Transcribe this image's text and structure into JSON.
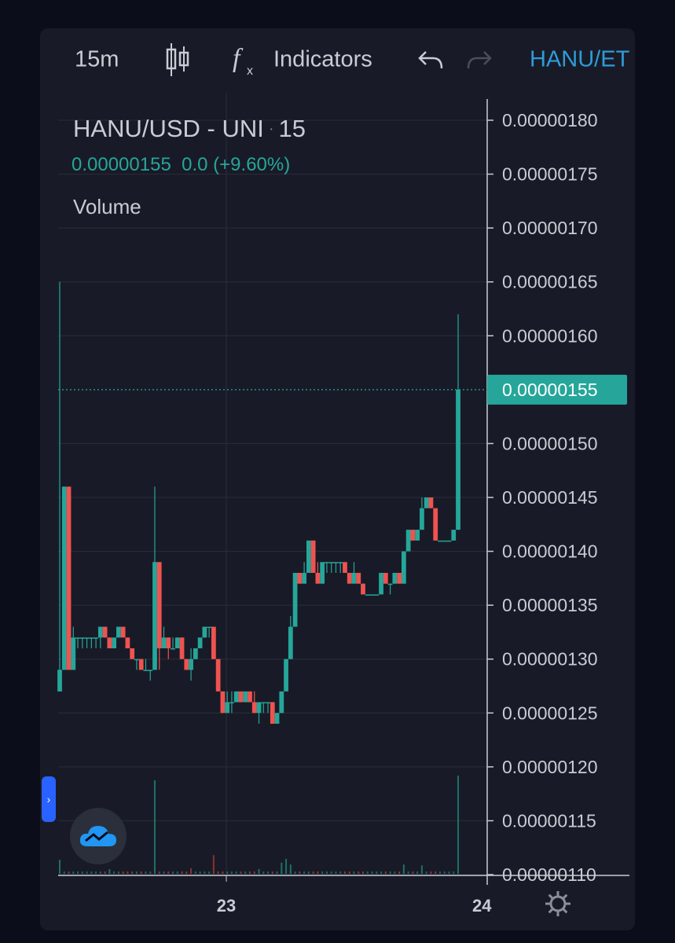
{
  "toolbar": {
    "interval": "15m",
    "chart_type_icon": "candlestick-icon",
    "indicators_icon": "fx-icon",
    "indicators_label": "Indicators",
    "undo_icon": "undo-icon",
    "redo_icon": "redo-icon",
    "symbol_label": "HANU/ET"
  },
  "legend": {
    "title": "HANU/USD - UNI",
    "separator": "·",
    "interval": "15",
    "last_price": "0.00000155",
    "change": "0.0 (+9.60%)",
    "volume_label": "Volume"
  },
  "colors": {
    "up": "#26a69a",
    "down": "#ef5350",
    "background": "#181b27",
    "grid": "#2a2e39",
    "accent": "#2f9bd8"
  },
  "chart_data": {
    "type": "candlestick",
    "title": "HANU/USD - UNI · 15",
    "price_axis": {
      "ticks": [
        "0.00000180",
        "0.00000175",
        "0.00000170",
        "0.00000165",
        "0.00000160",
        "0.00000150",
        "0.00000145",
        "0.00000140",
        "0.00000135",
        "0.00000130",
        "0.00000125",
        "0.00000120",
        "0.00000115",
        "0.00000110"
      ],
      "ylim": [
        1.1e-06,
        1.8e-06
      ]
    },
    "time_axis": {
      "labels": [
        "23",
        "24"
      ]
    },
    "last_price": 1.55e-06,
    "last_price_label": "0.00000155",
    "candles": [
      [
        0,
        127,
        165,
        127,
        129
      ],
      [
        1,
        129,
        146,
        129,
        146
      ],
      [
        2,
        146,
        146,
        129,
        129
      ],
      [
        3,
        129,
        133,
        129,
        132
      ],
      [
        4,
        132,
        132,
        131,
        132
      ],
      [
        5,
        132,
        132,
        131,
        132
      ],
      [
        6,
        132,
        132,
        131,
        132
      ],
      [
        7,
        132,
        132,
        131,
        132
      ],
      [
        8,
        132,
        132,
        131,
        132
      ],
      [
        9,
        132,
        133,
        131,
        133
      ],
      [
        10,
        133,
        133,
        132,
        132
      ],
      [
        11,
        132,
        132,
        131,
        131
      ],
      [
        12,
        131,
        132,
        131,
        132
      ],
      [
        13,
        132,
        133,
        132,
        133
      ],
      [
        14,
        133,
        133,
        132,
        132
      ],
      [
        15,
        132,
        132,
        131,
        131
      ],
      [
        16,
        131,
        131,
        130,
        130
      ],
      [
        17,
        130,
        130,
        129,
        130
      ],
      [
        18,
        130,
        130,
        129,
        129
      ],
      [
        19,
        129,
        130,
        129,
        129
      ],
      [
        20,
        129,
        129,
        128,
        129
      ],
      [
        21,
        129,
        146,
        129,
        139
      ],
      [
        22,
        139,
        139,
        129,
        131
      ],
      [
        23,
        131,
        133,
        131,
        132
      ],
      [
        24,
        132,
        132,
        130,
        131
      ],
      [
        25,
        131,
        132,
        131,
        131
      ],
      [
        26,
        131,
        132,
        131,
        132
      ],
      [
        27,
        132,
        132,
        130,
        130
      ],
      [
        28,
        130,
        130,
        129,
        129
      ],
      [
        29,
        129,
        131,
        128,
        130
      ],
      [
        30,
        130,
        131,
        130,
        131
      ],
      [
        31,
        131,
        132,
        131,
        132
      ],
      [
        32,
        132,
        133,
        132,
        133
      ],
      [
        33,
        133,
        133,
        132,
        133
      ],
      [
        34,
        133,
        133,
        130,
        130
      ],
      [
        35,
        130,
        130,
        127,
        127
      ],
      [
        36,
        127,
        127,
        125,
        125
      ],
      [
        37,
        125,
        127,
        125,
        126
      ],
      [
        38,
        126,
        127,
        125,
        126
      ],
      [
        39,
        126,
        127,
        126,
        127
      ],
      [
        40,
        127,
        127,
        126,
        126
      ],
      [
        41,
        126,
        127,
        126,
        127
      ],
      [
        42,
        127,
        127,
        126,
        126
      ],
      [
        43,
        126,
        127,
        125,
        125
      ],
      [
        44,
        125,
        126,
        124,
        126
      ],
      [
        45,
        126,
        126,
        125,
        126
      ],
      [
        46,
        126,
        126,
        125,
        126
      ],
      [
        47,
        126,
        126,
        124,
        124
      ],
      [
        48,
        124,
        125,
        124,
        125
      ],
      [
        49,
        125,
        127,
        125,
        127
      ],
      [
        50,
        127,
        130,
        127,
        130
      ],
      [
        51,
        130,
        134,
        130,
        133
      ],
      [
        52,
        133,
        138,
        133,
        138
      ],
      [
        53,
        138,
        138,
        137,
        137
      ],
      [
        54,
        137,
        139,
        137,
        138
      ],
      [
        55,
        138,
        141,
        138,
        141
      ],
      [
        56,
        141,
        141,
        138,
        138
      ],
      [
        57,
        138,
        139,
        137,
        137
      ],
      [
        58,
        137,
        139,
        137,
        139
      ],
      [
        59,
        139,
        139,
        138,
        139
      ],
      [
        60,
        139,
        139,
        138,
        139
      ],
      [
        61,
        139,
        139,
        138,
        139
      ],
      [
        62,
        139,
        139,
        138,
        139
      ],
      [
        63,
        139,
        139,
        138,
        138
      ],
      [
        64,
        138,
        138,
        137,
        137
      ],
      [
        65,
        137,
        139,
        137,
        138
      ],
      [
        66,
        138,
        138,
        137,
        137
      ],
      [
        67,
        137,
        137,
        136,
        136
      ],
      [
        68,
        136,
        136,
        136,
        136
      ],
      [
        69,
        136,
        136,
        136,
        136
      ],
      [
        70,
        136,
        136,
        136,
        136
      ],
      [
        71,
        136,
        138,
        136,
        138
      ],
      [
        72,
        138,
        138,
        137,
        137
      ],
      [
        73,
        137,
        137,
        136,
        137
      ],
      [
        74,
        137,
        138,
        137,
        138
      ],
      [
        75,
        138,
        138,
        137,
        137
      ],
      [
        76,
        137,
        140,
        137,
        140
      ],
      [
        77,
        140,
        142,
        140,
        142
      ],
      [
        78,
        142,
        142,
        141,
        141
      ],
      [
        79,
        141,
        142,
        141,
        142
      ],
      [
        80,
        142,
        145,
        142,
        144
      ],
      [
        81,
        144,
        145,
        144,
        145
      ],
      [
        82,
        145,
        145,
        144,
        144
      ],
      [
        83,
        144,
        144,
        141,
        141
      ],
      [
        84,
        141,
        141,
        141,
        141
      ],
      [
        85,
        141,
        141,
        141,
        141
      ],
      [
        86,
        141,
        141,
        141,
        141
      ],
      [
        87,
        141,
        142,
        141,
        142
      ],
      [
        88,
        142,
        162,
        142,
        155
      ]
    ],
    "volumes": [
      [
        0,
        1.5,
        "up"
      ],
      [
        11,
        0.5,
        "up"
      ],
      [
        21,
        10,
        "up"
      ],
      [
        29,
        0.6,
        "down"
      ],
      [
        34,
        2,
        "down"
      ],
      [
        44,
        0.5,
        "up"
      ],
      [
        49,
        1.2,
        "up"
      ],
      [
        50,
        1.6,
        "up"
      ],
      [
        51,
        1,
        "up"
      ],
      [
        76,
        1,
        "up"
      ],
      [
        80,
        0.9,
        "up"
      ],
      [
        88,
        10.5,
        "up"
      ]
    ]
  },
  "ui": {
    "pane_toggle_icon": "chevron-right-icon",
    "cloud_icon": "tradingview-cloud-icon",
    "settings_icon": "gear-icon"
  }
}
